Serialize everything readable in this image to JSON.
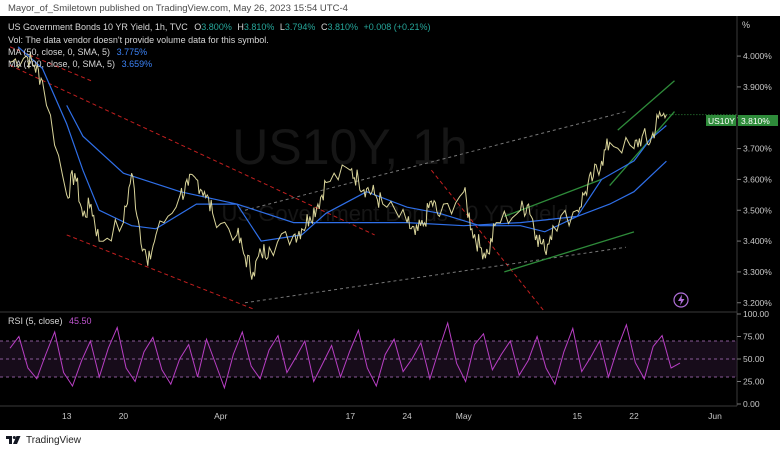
{
  "publisher_line": "Mayor_of_Smiletown published on TradingView.com, May 26, 2023 15:54 UTC-4",
  "footer_brand": "TradingView",
  "legend": {
    "symbol_line": {
      "title": "US Government Bonds 10 YR Yield, 1h, TVC",
      "o_label": "O",
      "o_value": "3.800%",
      "h_label": "H",
      "h_value": "3.810%",
      "l_label": "L",
      "l_value": "3.794%",
      "c_label": "C",
      "c_value": "3.810%",
      "change": "+0.008 (+0.21%)"
    },
    "vol_line": "Vol: The data vendor doesn't provide volume data for this symbol.",
    "ma50_label": "MA (50, close, 0, SMA, 5)",
    "ma50_value": "3.775%",
    "ma200_label": "MA (200, close, 0, SMA, 5)",
    "ma200_value": "3.659%"
  },
  "watermark": {
    "big": "US10Y, 1h",
    "small": "US Government Bonds 10 YR Yield"
  },
  "price_badge": {
    "symbol": "US10Y",
    "value": "3.810%"
  },
  "rsi_label": {
    "name": "RSI (5, close)",
    "value": "45.50"
  },
  "y_unit": "%",
  "colors": {
    "price": "#d9d49a",
    "ma50": "#2f6fe8",
    "ma200": "#2f6fe8",
    "resistance": "#c21f1f",
    "channel": "#777777",
    "trend_green": "#2e8b3a",
    "rsi": "#b83fc4",
    "badge_bg": "#2e8b3a",
    "up": "#26a69a"
  },
  "chart_data": [
    {
      "type": "line",
      "title": "US Government Bonds 10 YR Yield, 1h, TVC",
      "ylabel": "%",
      "ylim": [
        3.17,
        4.13
      ],
      "y_ticks": [
        "4.000%",
        "3.900%",
        "3.800%",
        "3.700%",
        "3.600%",
        "3.500%",
        "3.400%",
        "3.300%",
        "3.200%"
      ],
      "x_ticks": [
        "13",
        "20",
        "Apr",
        "17",
        "24",
        "May",
        "15",
        "22",
        "Jun"
      ],
      "series": [
        {
          "name": "US10Y",
          "x": [
            "Mar 6",
            "Mar 8",
            "Mar 9",
            "Mar 10",
            "Mar 13",
            "Mar 14",
            "Mar 15",
            "Mar 16",
            "Mar 17",
            "Mar 20",
            "Mar 21",
            "Mar 22",
            "Mar 23",
            "Mar 24",
            "Mar 27",
            "Mar 28",
            "Mar 29",
            "Mar 30",
            "Mar 31",
            "Apr 3",
            "Apr 4",
            "Apr 5",
            "Apr 6",
            "Apr 7",
            "Apr 10",
            "Apr 11",
            "Apr 12",
            "Apr 13",
            "Apr 14",
            "Apr 17",
            "Apr 18",
            "Apr 19",
            "Apr 20",
            "Apr 21",
            "Apr 24",
            "Apr 25",
            "Apr 26",
            "Apr 27",
            "Apr 28",
            "May 1",
            "May 2",
            "May 3",
            "May 4",
            "May 5",
            "May 8",
            "May 9",
            "May 10",
            "May 11",
            "May 12",
            "May 15",
            "May 16",
            "May 17",
            "May 18",
            "May 19",
            "May 22",
            "May 23",
            "May 24",
            "May 25",
            "May 26"
          ],
          "values": [
            3.98,
            4.0,
            3.97,
            3.92,
            3.55,
            3.62,
            3.48,
            3.52,
            3.4,
            3.46,
            3.62,
            3.44,
            3.32,
            3.42,
            3.55,
            3.58,
            3.6,
            3.56,
            3.49,
            3.42,
            3.35,
            3.3,
            3.36,
            3.38,
            3.42,
            3.44,
            3.48,
            3.52,
            3.59,
            3.63,
            3.6,
            3.57,
            3.55,
            3.52,
            3.46,
            3.42,
            3.45,
            3.53,
            3.48,
            3.56,
            3.44,
            3.38,
            3.36,
            3.46,
            3.5,
            3.52,
            3.42,
            3.37,
            3.45,
            3.5,
            3.56,
            3.61,
            3.66,
            3.72,
            3.7,
            3.74,
            3.72,
            3.8,
            3.81
          ]
        },
        {
          "name": "MA (50, close, 0, SMA, 5)",
          "x": [
            "Mar 7",
            "Mar 10",
            "Mar 13",
            "Mar 15",
            "Mar 17",
            "Mar 21",
            "Mar 24",
            "Mar 29",
            "Apr 3",
            "Apr 6",
            "Apr 11",
            "Apr 14",
            "Apr 19",
            "Apr 24",
            "Apr 28",
            "May 3",
            "May 8",
            "May 11",
            "May 15",
            "May 18",
            "May 22",
            "May 24",
            "May 26"
          ],
          "values": [
            4.03,
            3.96,
            3.78,
            3.63,
            3.5,
            3.45,
            3.44,
            3.52,
            3.52,
            3.4,
            3.42,
            3.49,
            3.56,
            3.51,
            3.49,
            3.45,
            3.45,
            3.43,
            3.48,
            3.6,
            3.66,
            3.73,
            3.775
          ]
        },
        {
          "name": "MA (200, close, 0, SMA, 5)",
          "x": [
            "Mar 13",
            "Mar 15",
            "Mar 20",
            "Mar 27",
            "Apr 3",
            "Apr 10",
            "Apr 17",
            "Apr 24",
            "May 1",
            "May 8",
            "May 15",
            "May 19",
            "May 22",
            "May 26"
          ],
          "values": [
            3.84,
            3.74,
            3.62,
            3.56,
            3.52,
            3.46,
            3.46,
            3.46,
            3.45,
            3.46,
            3.48,
            3.52,
            3.56,
            3.659
          ]
        }
      ]
    },
    {
      "type": "line",
      "title": "RSI (5, close)",
      "ylim": [
        0,
        100
      ],
      "y_ticks": [
        "100.00",
        "75.00",
        "50.00",
        "25.00",
        "0.00"
      ],
      "levels": [
        70,
        50,
        30
      ],
      "series": [
        {
          "name": "RSI (5, close)",
          "values": [
            62,
            75,
            40,
            28,
            55,
            80,
            35,
            20,
            48,
            70,
            30,
            62,
            85,
            40,
            25,
            58,
            74,
            38,
            22,
            50,
            66,
            30,
            72,
            45,
            18,
            55,
            80,
            42,
            28,
            60,
            76,
            35,
            52,
            70,
            25,
            45,
            65,
            30,
            58,
            82,
            40,
            20,
            55,
            72,
            36,
            50,
            68,
            28,
            60,
            90,
            45,
            25,
            66,
            78,
            38,
            55,
            70,
            32,
            48,
            75,
            40,
            22,
            58,
            84,
            36,
            52,
            70,
            30,
            62,
            88,
            46,
            28,
            64,
            76,
            40,
            45.5
          ]
        }
      ]
    }
  ]
}
